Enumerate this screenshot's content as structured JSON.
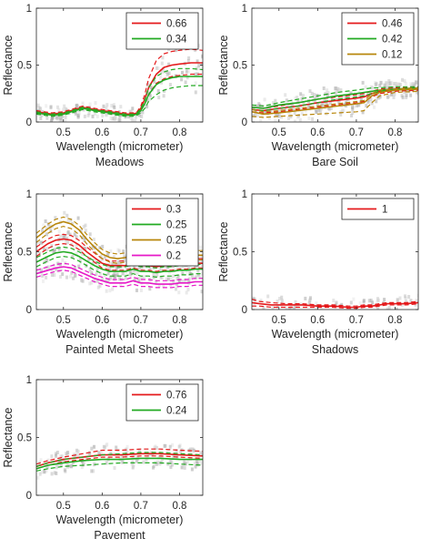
{
  "figure": {
    "panel_count": 5
  },
  "chart_data": [
    {
      "type": "line",
      "caption": "Meadows",
      "xlabel": "Wavelength (micrometer)",
      "ylabel": "Reflectance",
      "xlim": [
        0.43,
        0.86
      ],
      "ylim": [
        0,
        1
      ],
      "xticks": [
        0.5,
        0.6,
        0.7,
        0.8
      ],
      "yticks": [
        0,
        0.5,
        1
      ],
      "legend_position": "top-right",
      "background": "gray-density",
      "series": [
        {
          "name": "0.66",
          "color": "#e41a1c",
          "x": [
            0.43,
            0.47,
            0.5,
            0.53,
            0.55,
            0.58,
            0.62,
            0.66,
            0.68,
            0.69,
            0.7,
            0.71,
            0.72,
            0.74,
            0.76,
            0.78,
            0.8,
            0.83,
            0.86
          ],
          "y": [
            0.09,
            0.07,
            0.08,
            0.11,
            0.13,
            0.11,
            0.09,
            0.07,
            0.07,
            0.08,
            0.12,
            0.2,
            0.3,
            0.42,
            0.48,
            0.5,
            0.51,
            0.52,
            0.52
          ],
          "upper": [
            0.1,
            0.08,
            0.09,
            0.12,
            0.14,
            0.12,
            0.1,
            0.08,
            0.08,
            0.09,
            0.14,
            0.24,
            0.38,
            0.54,
            0.6,
            0.62,
            0.63,
            0.64,
            0.63
          ],
          "lower": [
            0.08,
            0.06,
            0.07,
            0.1,
            0.12,
            0.1,
            0.08,
            0.06,
            0.06,
            0.07,
            0.1,
            0.16,
            0.24,
            0.34,
            0.38,
            0.4,
            0.41,
            0.42,
            0.42
          ]
        },
        {
          "name": "0.34",
          "color": "#22aa22",
          "x": [
            0.43,
            0.47,
            0.5,
            0.53,
            0.55,
            0.58,
            0.62,
            0.66,
            0.68,
            0.69,
            0.7,
            0.71,
            0.72,
            0.74,
            0.76,
            0.78,
            0.8,
            0.83,
            0.86
          ],
          "y": [
            0.08,
            0.06,
            0.07,
            0.1,
            0.12,
            0.1,
            0.08,
            0.06,
            0.06,
            0.07,
            0.1,
            0.16,
            0.24,
            0.33,
            0.37,
            0.39,
            0.4,
            0.4,
            0.4
          ],
          "upper": [
            0.09,
            0.07,
            0.08,
            0.11,
            0.13,
            0.11,
            0.09,
            0.07,
            0.07,
            0.08,
            0.12,
            0.19,
            0.3,
            0.4,
            0.44,
            0.46,
            0.47,
            0.47,
            0.46
          ],
          "lower": [
            0.07,
            0.05,
            0.06,
            0.09,
            0.11,
            0.09,
            0.07,
            0.05,
            0.05,
            0.06,
            0.08,
            0.12,
            0.18,
            0.24,
            0.28,
            0.3,
            0.31,
            0.32,
            0.32
          ]
        }
      ]
    },
    {
      "type": "line",
      "caption": "Bare Soil",
      "xlabel": "Wavelength (micrometer)",
      "ylabel": "Reflectance",
      "xlim": [
        0.43,
        0.86
      ],
      "ylim": [
        0,
        1
      ],
      "xticks": [
        0.5,
        0.6,
        0.7,
        0.8
      ],
      "yticks": [
        0,
        0.5,
        1
      ],
      "legend_position": "top-right",
      "background": "gray-density",
      "series": [
        {
          "name": "0.46",
          "color": "#e41a1c",
          "x": [
            0.43,
            0.46,
            0.5,
            0.55,
            0.6,
            0.65,
            0.7,
            0.72,
            0.74,
            0.76,
            0.8,
            0.86
          ],
          "y": [
            0.11,
            0.1,
            0.12,
            0.14,
            0.17,
            0.19,
            0.21,
            0.22,
            0.25,
            0.27,
            0.28,
            0.29
          ],
          "upper": [
            0.13,
            0.12,
            0.14,
            0.17,
            0.2,
            0.22,
            0.24,
            0.25,
            0.27,
            0.29,
            0.3,
            0.31
          ],
          "lower": [
            0.09,
            0.08,
            0.09,
            0.11,
            0.13,
            0.15,
            0.17,
            0.18,
            0.22,
            0.25,
            0.27,
            0.28
          ]
        },
        {
          "name": "0.42",
          "color": "#22aa22",
          "x": [
            0.43,
            0.46,
            0.5,
            0.55,
            0.6,
            0.65,
            0.7,
            0.72,
            0.74,
            0.76,
            0.8,
            0.86
          ],
          "y": [
            0.13,
            0.12,
            0.15,
            0.17,
            0.2,
            0.23,
            0.25,
            0.26,
            0.27,
            0.28,
            0.29,
            0.3
          ],
          "upper": [
            0.15,
            0.14,
            0.17,
            0.2,
            0.23,
            0.26,
            0.28,
            0.29,
            0.3,
            0.3,
            0.31,
            0.31
          ],
          "lower": [
            0.11,
            0.1,
            0.12,
            0.14,
            0.17,
            0.2,
            0.22,
            0.23,
            0.25,
            0.27,
            0.28,
            0.29
          ]
        },
        {
          "name": "0.12",
          "color": "#b8860b",
          "x": [
            0.43,
            0.46,
            0.5,
            0.55,
            0.6,
            0.65,
            0.7,
            0.72,
            0.74,
            0.76,
            0.8,
            0.86
          ],
          "y": [
            0.09,
            0.07,
            0.08,
            0.1,
            0.12,
            0.14,
            0.16,
            0.17,
            0.23,
            0.26,
            0.28,
            0.29
          ],
          "upper": [
            0.11,
            0.09,
            0.1,
            0.12,
            0.14,
            0.16,
            0.18,
            0.19,
            0.25,
            0.28,
            0.29,
            0.3
          ],
          "lower": [
            0.05,
            0.04,
            0.05,
            0.06,
            0.07,
            0.08,
            0.09,
            0.1,
            0.17,
            0.23,
            0.26,
            0.27
          ]
        }
      ]
    },
    {
      "type": "line",
      "caption": "Painted Metal Sheets",
      "xlabel": "Wavelength (micrometer)",
      "ylabel": "Reflectance",
      "xlim": [
        0.43,
        0.86
      ],
      "ylim": [
        0,
        1
      ],
      "xticks": [
        0.5,
        0.6,
        0.7,
        0.8
      ],
      "yticks": [
        0,
        0.5,
        1
      ],
      "legend_position": "top-right",
      "background": "gray-density",
      "series": [
        {
          "name": "0.3",
          "color": "#e41a1c",
          "x": [
            0.43,
            0.46,
            0.48,
            0.5,
            0.52,
            0.54,
            0.56,
            0.58,
            0.6,
            0.62,
            0.64,
            0.66,
            0.68,
            0.7,
            0.72,
            0.74,
            0.76,
            0.78,
            0.8,
            0.82,
            0.84,
            0.86
          ],
          "y": [
            0.5,
            0.57,
            0.6,
            0.61,
            0.6,
            0.56,
            0.5,
            0.45,
            0.4,
            0.38,
            0.38,
            0.38,
            0.4,
            0.38,
            0.38,
            0.37,
            0.38,
            0.38,
            0.39,
            0.39,
            0.4,
            0.4
          ],
          "upper": [
            0.54,
            0.61,
            0.64,
            0.65,
            0.64,
            0.6,
            0.54,
            0.49,
            0.44,
            0.42,
            0.42,
            0.42,
            0.44,
            0.42,
            0.42,
            0.41,
            0.42,
            0.42,
            0.43,
            0.43,
            0.44,
            0.44
          ],
          "lower": [
            0.46,
            0.53,
            0.56,
            0.57,
            0.56,
            0.52,
            0.46,
            0.41,
            0.36,
            0.34,
            0.34,
            0.34,
            0.36,
            0.34,
            0.34,
            0.33,
            0.34,
            0.34,
            0.35,
            0.35,
            0.36,
            0.36
          ]
        },
        {
          "name": "0.25",
          "color": "#22aa22",
          "x": [
            0.43,
            0.46,
            0.48,
            0.5,
            0.52,
            0.54,
            0.56,
            0.58,
            0.6,
            0.62,
            0.64,
            0.66,
            0.68,
            0.7,
            0.72,
            0.74,
            0.76,
            0.78,
            0.8,
            0.82,
            0.84,
            0.86
          ],
          "y": [
            0.41,
            0.46,
            0.49,
            0.5,
            0.49,
            0.46,
            0.42,
            0.38,
            0.35,
            0.33,
            0.33,
            0.33,
            0.35,
            0.33,
            0.33,
            0.32,
            0.33,
            0.33,
            0.34,
            0.34,
            0.35,
            0.35
          ],
          "upper": [
            0.45,
            0.5,
            0.53,
            0.54,
            0.53,
            0.5,
            0.46,
            0.42,
            0.39,
            0.37,
            0.37,
            0.37,
            0.39,
            0.37,
            0.37,
            0.36,
            0.37,
            0.37,
            0.38,
            0.38,
            0.39,
            0.39
          ],
          "lower": [
            0.37,
            0.42,
            0.45,
            0.46,
            0.45,
            0.42,
            0.38,
            0.34,
            0.31,
            0.29,
            0.29,
            0.29,
            0.31,
            0.29,
            0.29,
            0.28,
            0.29,
            0.29,
            0.3,
            0.3,
            0.31,
            0.31
          ]
        },
        {
          "name": "0.25",
          "color": "#b8860b",
          "x": [
            0.43,
            0.46,
            0.48,
            0.5,
            0.52,
            0.54,
            0.56,
            0.58,
            0.6,
            0.62,
            0.64,
            0.66,
            0.68,
            0.7,
            0.72,
            0.74,
            0.76,
            0.78,
            0.8,
            0.82,
            0.84,
            0.86
          ],
          "y": [
            0.62,
            0.7,
            0.74,
            0.76,
            0.74,
            0.69,
            0.61,
            0.54,
            0.48,
            0.45,
            0.44,
            0.45,
            0.47,
            0.45,
            0.45,
            0.44,
            0.45,
            0.45,
            0.46,
            0.46,
            0.47,
            0.47
          ],
          "upper": [
            0.66,
            0.74,
            0.78,
            0.8,
            0.78,
            0.73,
            0.65,
            0.58,
            0.52,
            0.49,
            0.48,
            0.49,
            0.51,
            0.49,
            0.49,
            0.48,
            0.49,
            0.49,
            0.5,
            0.5,
            0.51,
            0.51
          ],
          "lower": [
            0.58,
            0.66,
            0.7,
            0.72,
            0.7,
            0.65,
            0.57,
            0.5,
            0.44,
            0.41,
            0.4,
            0.41,
            0.43,
            0.41,
            0.41,
            0.4,
            0.41,
            0.41,
            0.42,
            0.42,
            0.43,
            0.43
          ]
        },
        {
          "name": "0.2",
          "color": "#e619c8",
          "x": [
            0.43,
            0.46,
            0.48,
            0.5,
            0.52,
            0.54,
            0.56,
            0.58,
            0.6,
            0.62,
            0.64,
            0.66,
            0.68,
            0.7,
            0.72,
            0.74,
            0.76,
            0.78,
            0.8,
            0.82,
            0.84,
            0.86
          ],
          "y": [
            0.31,
            0.34,
            0.36,
            0.37,
            0.36,
            0.33,
            0.3,
            0.27,
            0.25,
            0.23,
            0.23,
            0.23,
            0.25,
            0.23,
            0.23,
            0.22,
            0.22,
            0.22,
            0.23,
            0.23,
            0.24,
            0.24
          ],
          "upper": [
            0.34,
            0.37,
            0.39,
            0.4,
            0.39,
            0.36,
            0.33,
            0.3,
            0.28,
            0.26,
            0.26,
            0.26,
            0.28,
            0.26,
            0.26,
            0.25,
            0.25,
            0.25,
            0.26,
            0.26,
            0.27,
            0.27
          ],
          "lower": [
            0.28,
            0.31,
            0.33,
            0.34,
            0.33,
            0.3,
            0.27,
            0.24,
            0.22,
            0.2,
            0.2,
            0.2,
            0.22,
            0.2,
            0.2,
            0.19,
            0.19,
            0.19,
            0.2,
            0.2,
            0.21,
            0.21
          ]
        }
      ]
    },
    {
      "type": "line",
      "caption": "Shadows",
      "xlabel": "Wavelength (micrometer)",
      "ylabel": "Reflectance",
      "xlim": [
        0.43,
        0.86
      ],
      "ylim": [
        0,
        1
      ],
      "xticks": [
        0.5,
        0.6,
        0.7,
        0.8
      ],
      "yticks": [
        0,
        0.5,
        1
      ],
      "legend_position": "top-right",
      "background": "gray-density",
      "series": [
        {
          "name": "1",
          "color": "#e41a1c",
          "x": [
            0.43,
            0.45,
            0.48,
            0.52,
            0.56,
            0.6,
            0.64,
            0.68,
            0.7,
            0.72,
            0.74,
            0.76,
            0.78,
            0.8,
            0.83,
            0.86
          ],
          "y": [
            0.06,
            0.05,
            0.04,
            0.04,
            0.04,
            0.03,
            0.03,
            0.02,
            0.02,
            0.03,
            0.03,
            0.04,
            0.05,
            0.05,
            0.05,
            0.06
          ],
          "upper": [
            0.09,
            0.07,
            0.06,
            0.05,
            0.05,
            0.04,
            0.04,
            0.03,
            0.03,
            0.04,
            0.04,
            0.05,
            0.06,
            0.06,
            0.06,
            0.07
          ],
          "lower": [
            0.03,
            0.03,
            0.02,
            0.02,
            0.02,
            0.02,
            0.02,
            0.01,
            0.01,
            0.02,
            0.02,
            0.03,
            0.04,
            0.04,
            0.04,
            0.05
          ]
        }
      ]
    },
    {
      "type": "line",
      "caption": "Pavement",
      "xlabel": "Wavelength (micrometer)",
      "ylabel": "Reflectance",
      "xlim": [
        0.43,
        0.86
      ],
      "ylim": [
        0,
        1
      ],
      "xticks": [
        0.5,
        0.6,
        0.7,
        0.8
      ],
      "yticks": [
        0,
        0.5,
        1
      ],
      "legend_position": "top-right",
      "background": "gray-density",
      "series": [
        {
          "name": "0.76",
          "color": "#e41a1c",
          "x": [
            0.43,
            0.46,
            0.5,
            0.55,
            0.6,
            0.65,
            0.7,
            0.75,
            0.8,
            0.86
          ],
          "y": [
            0.25,
            0.28,
            0.31,
            0.33,
            0.35,
            0.35,
            0.36,
            0.36,
            0.35,
            0.34
          ],
          "upper": [
            0.27,
            0.3,
            0.33,
            0.36,
            0.39,
            0.39,
            0.4,
            0.4,
            0.39,
            0.38
          ],
          "lower": [
            0.23,
            0.26,
            0.29,
            0.31,
            0.33,
            0.33,
            0.34,
            0.34,
            0.33,
            0.32
          ]
        },
        {
          "name": "0.24",
          "color": "#22aa22",
          "x": [
            0.43,
            0.46,
            0.5,
            0.55,
            0.6,
            0.65,
            0.7,
            0.75,
            0.8,
            0.86
          ],
          "y": [
            0.23,
            0.26,
            0.28,
            0.3,
            0.31,
            0.31,
            0.32,
            0.32,
            0.31,
            0.31
          ],
          "upper": [
            0.25,
            0.28,
            0.31,
            0.33,
            0.35,
            0.36,
            0.37,
            0.37,
            0.36,
            0.35
          ],
          "lower": [
            0.21,
            0.23,
            0.25,
            0.26,
            0.27,
            0.28,
            0.28,
            0.28,
            0.27,
            0.26
          ]
        }
      ]
    }
  ]
}
